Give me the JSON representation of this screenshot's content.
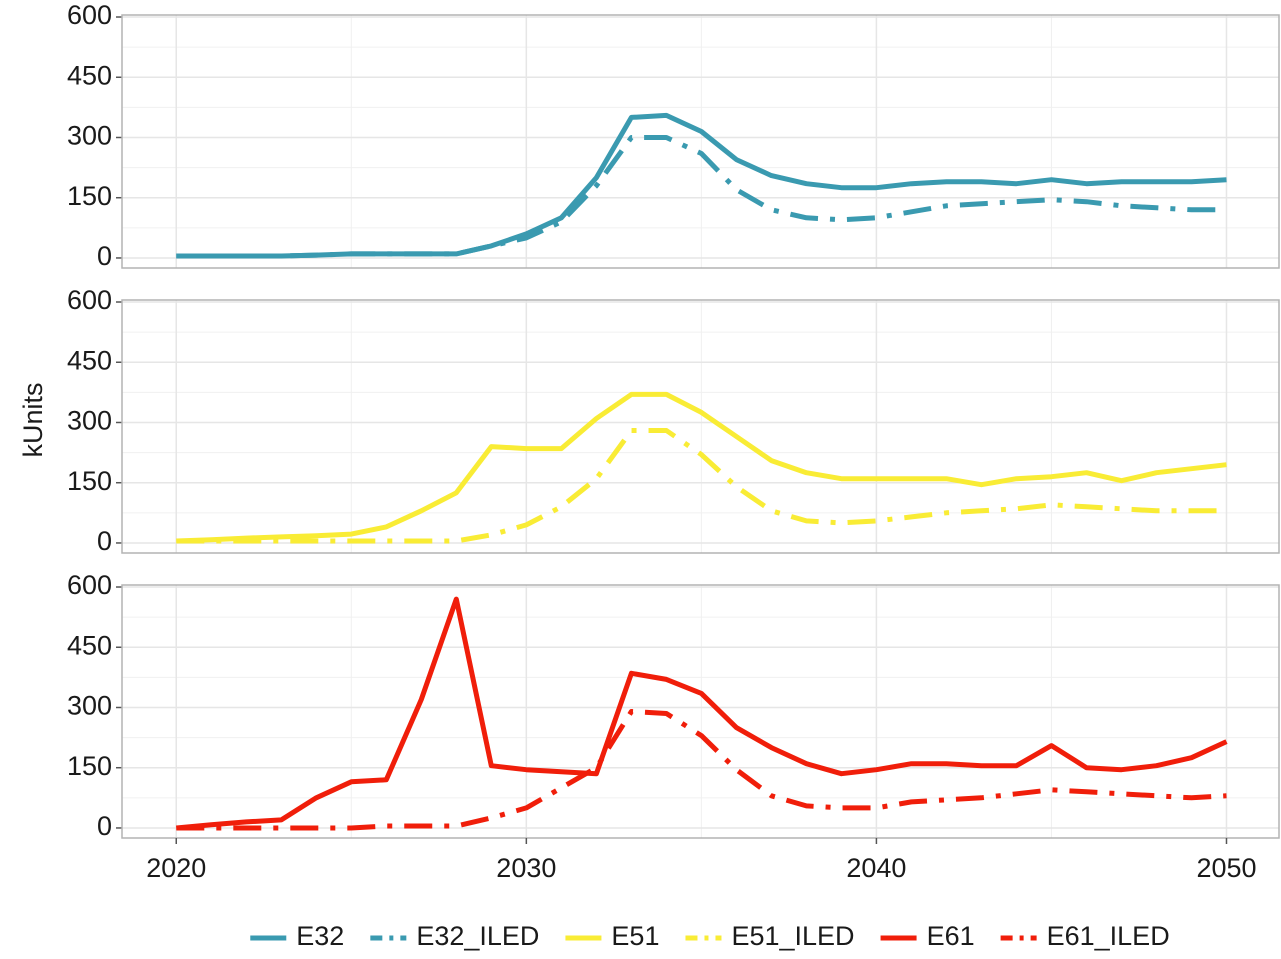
{
  "chart_data": {
    "type": "line",
    "ylabel": "kUnits",
    "x": [
      2020,
      2021,
      2022,
      2023,
      2024,
      2025,
      2026,
      2027,
      2028,
      2029,
      2030,
      2031,
      2032,
      2033,
      2034,
      2035,
      2036,
      2037,
      2038,
      2039,
      2040,
      2041,
      2042,
      2043,
      2044,
      2045,
      2046,
      2047,
      2048,
      2049,
      2050
    ],
    "xlim": [
      2018.45,
      2051.5
    ],
    "xticks": [
      2020,
      2030,
      2040,
      2050
    ],
    "xminor": [
      2025,
      2035,
      2045
    ],
    "ylim": [
      -25,
      605
    ],
    "yticks": [
      0,
      150,
      300,
      450,
      600
    ],
    "yminor": [
      75,
      225,
      375,
      525
    ],
    "grid": true,
    "legend": "bottom",
    "facets": [
      {
        "series": [
          {
            "name": "E32",
            "color": "#3a9ab0",
            "linestyle": "solid",
            "values": [
              5,
              5,
              5,
              5,
              7,
              10,
              10,
              10,
              10,
              30,
              60,
              100,
              200,
              350,
              355,
              315,
              245,
              205,
              185,
              175,
              175,
              185,
              190,
              190,
              185,
              195,
              185,
              190,
              190,
              190,
              195
            ]
          },
          {
            "name": "E32_ILED",
            "color": "#3a9ab0",
            "linestyle": "dashdot",
            "values": [
              5,
              5,
              5,
              5,
              7,
              10,
              10,
              10,
              10,
              30,
              50,
              90,
              180,
              300,
              300,
              260,
              170,
              120,
              100,
              95,
              100,
              115,
              130,
              135,
              140,
              145,
              140,
              130,
              125,
              120,
              120
            ]
          }
        ]
      },
      {
        "series": [
          {
            "name": "E51",
            "color": "#f9ec35",
            "linestyle": "solid",
            "values": [
              5,
              8,
              12,
              15,
              18,
              22,
              40,
              80,
              125,
              240,
              235,
              235,
              310,
              370,
              370,
              325,
              265,
              205,
              175,
              160,
              160,
              160,
              160,
              145,
              160,
              165,
              175,
              155,
              175,
              185,
              195
            ]
          },
          {
            "name": "E51_ILED",
            "color": "#f9ec35",
            "linestyle": "dashdot",
            "values": [
              5,
              5,
              5,
              5,
              5,
              5,
              5,
              5,
              5,
              20,
              45,
              90,
              160,
              280,
              280,
              220,
              140,
              80,
              55,
              50,
              55,
              65,
              75,
              80,
              85,
              95,
              90,
              85,
              80,
              80,
              80
            ]
          }
        ]
      },
      {
        "series": [
          {
            "name": "E61",
            "color": "#f01e0a",
            "linestyle": "solid",
            "values": [
              0,
              8,
              15,
              20,
              75,
              115,
              120,
              320,
              570,
              155,
              145,
              140,
              135,
              385,
              370,
              335,
              250,
              200,
              160,
              135,
              145,
              160,
              160,
              155,
              155,
              205,
              150,
              145,
              155,
              175,
              215
            ]
          },
          {
            "name": "E61_ILED",
            "color": "#f01e0a",
            "linestyle": "dashdot",
            "values": [
              0,
              0,
              0,
              0,
              0,
              0,
              5,
              5,
              5,
              25,
              50,
              100,
              150,
              290,
              285,
              230,
              145,
              80,
              55,
              50,
              50,
              65,
              70,
              75,
              85,
              95,
              90,
              85,
              80,
              75,
              80
            ]
          }
        ]
      }
    ]
  }
}
